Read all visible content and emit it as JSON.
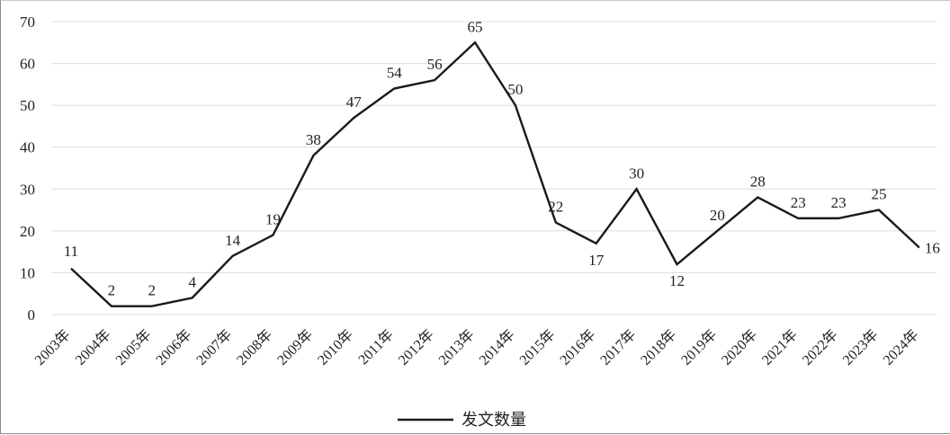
{
  "chart_data": {
    "type": "line",
    "title": "",
    "xlabel": "",
    "ylabel": "",
    "ylim": [
      0,
      70
    ],
    "yticks": [
      0,
      10,
      20,
      30,
      40,
      50,
      60,
      70
    ],
    "grid": true,
    "legend_position": "bottom-center",
    "categories": [
      "2003年",
      "2004年",
      "2005年",
      "2006年",
      "2007年",
      "2008年",
      "2009年",
      "2010年",
      "2011年",
      "2012年",
      "2013年",
      "2014年",
      "2015年",
      "2016年",
      "2017年",
      "2018年",
      "2019年",
      "2020年",
      "2021年",
      "2022年",
      "2023年",
      "2024年"
    ],
    "series": [
      {
        "name": "发文数量",
        "color": "#1a1a1a",
        "values": [
          11,
          2,
          2,
          4,
          14,
          19,
          38,
          47,
          54,
          56,
          65,
          50,
          22,
          17,
          30,
          12,
          20,
          28,
          23,
          23,
          25,
          16
        ]
      }
    ]
  }
}
